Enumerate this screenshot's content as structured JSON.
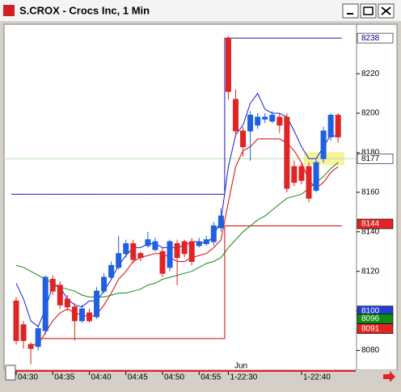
{
  "window_title": "S.CROX - Crocs Inc, 1 Min",
  "chart_data": {
    "type": "candlestick",
    "open": [
      8105,
      8093,
      8083,
      8082,
      8090,
      8116,
      8113,
      8106,
      8102,
      8095,
      8099,
      8097,
      8110,
      8117,
      8122,
      8129,
      8134,
      8129,
      8133,
      8131,
      8130,
      8122,
      8134,
      8135,
      8135,
      8133,
      8134,
      8135,
      8142,
      8238,
      8207,
      8191,
      8191,
      8194,
      8197,
      8196,
      8198,
      8198,
      8173,
      8173,
      8173,
      8161,
      8177,
      8188,
      8199
    ],
    "high": [
      8107,
      8095,
      8084,
      8093,
      8118,
      8118,
      8115,
      8108,
      8104,
      8103,
      8101,
      8112,
      8119,
      8125,
      8138,
      8136,
      8136,
      8130,
      8140,
      8137,
      8132,
      8136,
      8136,
      8136,
      8137,
      8137,
      8138,
      8145,
      8152,
      8239,
      8212,
      8193,
      8201,
      8200,
      8200,
      8201,
      8200,
      8200,
      8176,
      8175,
      8175,
      8177,
      8193,
      8200,
      8200
    ],
    "low": [
      8083,
      8081,
      8073,
      8080,
      8088,
      8108,
      8101,
      8100,
      8085,
      8094,
      8094,
      8096,
      8109,
      8116,
      8121,
      8127,
      8124,
      8125,
      8132,
      8130,
      8117,
      8120,
      8113,
      8127,
      8123,
      8132,
      8133,
      8133,
      8140,
      8207,
      8188,
      8178,
      8176,
      8192,
      8195,
      8195,
      8190,
      8160,
      8163,
      8164,
      8155,
      8160,
      8175,
      8186,
      8185
    ],
    "close": [
      8085,
      8085,
      8081,
      8091,
      8117,
      8110,
      8103,
      8102,
      8095,
      8101,
      8095,
      8110,
      8117,
      8123,
      8129,
      8134,
      8126,
      8127,
      8136,
      8135,
      8119,
      8135,
      8127,
      8129,
      8125,
      8135,
      8136,
      8143,
      8148,
      8211,
      8191,
      8183,
      8199,
      8198,
      8198,
      8199,
      8194,
      8162,
      8165,
      8166,
      8157,
      8175,
      8191,
      8199,
      8188
    ],
    "up_color": "#1f5fe0",
    "down_color": "#e02424",
    "series": [
      {
        "color": "#1a1ad0",
        "values": [
          8114,
          8106,
          8095,
          8092,
          8101,
          8113,
          8112,
          8106,
          8103,
          8102,
          8105,
          8105,
          8110,
          8116,
          8123,
          8128,
          8132,
          8132,
          8134,
          8134,
          8132,
          8132,
          8132,
          8133,
          8135,
          8135,
          8134,
          8138,
          8146,
          8173,
          8189,
          8194,
          8205,
          8210,
          8202,
          8200,
          8200,
          8198,
          8191,
          8183,
          8177,
          8177,
          8183,
          8189,
          8188
        ]
      },
      {
        "color": "#e00000",
        "values": [
          null,
          null,
          8083,
          8083,
          8089,
          8095,
          8099,
          8101,
          8099,
          8098,
          8097,
          8098,
          8103,
          8109,
          8116,
          8120,
          8125,
          8127,
          8128,
          8129,
          8129,
          8127,
          8125,
          8125,
          8127,
          8128,
          8129,
          8132,
          8136,
          8155,
          8173,
          8181,
          8183,
          8187,
          8187,
          8187,
          8187,
          8185,
          8181,
          8175,
          8166,
          8162,
          8165,
          8170,
          8173
        ]
      },
      {
        "color": "#108a10",
        "values": [
          8123,
          8122,
          8120,
          8118,
          8116,
          8114,
          8112,
          8111,
          8110,
          8108,
          8107,
          8107,
          8107,
          8108,
          8109,
          8109,
          8110,
          8111,
          8113,
          8114,
          8116,
          8117,
          8118,
          8119,
          8120,
          8122,
          8124,
          8125,
          8127,
          8132,
          8136,
          8140,
          8143,
          8146,
          8148,
          8151,
          8154,
          8157,
          8158,
          8159,
          8162,
          8165,
          8168,
          8172,
          8175
        ]
      }
    ],
    "levels": [
      {
        "color": "#1a1a9c",
        "values": [
          8159,
          8159,
          8159,
          8159,
          8159,
          8159,
          8159,
          8159,
          8159,
          8159,
          8159,
          8159,
          8159,
          8159,
          8159,
          8159,
          8159,
          8159,
          8159,
          8159,
          8159,
          8159,
          8159,
          8159,
          8159,
          8159,
          8159,
          8159,
          8159,
          8238,
          8238,
          8238,
          8238,
          8238,
          8238,
          8238,
          8238,
          8238,
          8238,
          8238,
          8238,
          8238,
          8238,
          8238,
          8238
        ]
      },
      {
        "color": "#d00000",
        "values": [
          null,
          null,
          null,
          null,
          8086,
          8086,
          8086,
          8086,
          8086,
          8086,
          8086,
          8086,
          8086,
          8086,
          8086,
          8086,
          8086,
          8086,
          8086,
          8086,
          8086,
          8086,
          8086,
          8086,
          8086,
          8086,
          8086,
          8086,
          8086,
          8143,
          8143,
          8143,
          8143,
          8143,
          8143,
          8143,
          8143,
          8143,
          8143,
          8143,
          8143,
          8143,
          8143,
          8143,
          8143
        ]
      }
    ],
    "ylim": [
      8070,
      8245
    ],
    "yticks": [
      8080,
      8100,
      8120,
      8140,
      8160,
      8180,
      8200,
      8220
    ],
    "xticks": [
      {
        "value": 0,
        "label": "04:30"
      },
      {
        "value": 5,
        "label": "04:35"
      },
      {
        "value": 10,
        "label": "04:40"
      },
      {
        "value": 15,
        "label": "04:45"
      },
      {
        "value": 20,
        "label": "04:50"
      },
      {
        "value": 25,
        "label": "04:55"
      },
      {
        "value": 29,
        "label": "1-22:30"
      },
      {
        "value": 39,
        "label": "1-22:40"
      }
    ],
    "annotation": "Jun",
    "price_markers": [
      {
        "value": 8238,
        "color": "#ffffff",
        "text_color": "#000080"
      },
      {
        "value": 8177,
        "color": "#ffffff",
        "text_color": "#000000"
      },
      {
        "value": 8144,
        "color": "#e02424",
        "text_color": "#ffffff"
      },
      {
        "value": 8100,
        "color": "#1f3fd0",
        "text_color": "#ffffff"
      },
      {
        "value": 8096,
        "color": "#108a10",
        "text_color": "#ffffff"
      },
      {
        "value": 8091,
        "color": "#e02424",
        "text_color": "#ffffff"
      }
    ]
  }
}
